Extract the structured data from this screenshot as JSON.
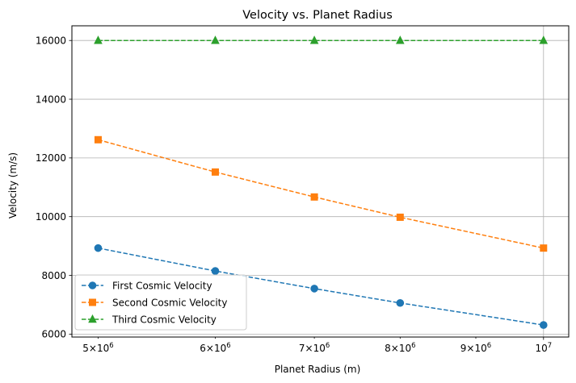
{
  "chart_data": {
    "type": "line",
    "title": "Velocity vs. Planet Radius",
    "xlabel": "Planet Radius (m)",
    "ylabel": "Velocity (m/s)",
    "xscale": "log",
    "xlim": [
      4800000,
      10400000
    ],
    "ylim": [
      5900,
      16500
    ],
    "x": [
      5000000,
      6000000,
      7000000,
      8000000,
      10000000
    ],
    "xticks": [
      {
        "value": 5000000,
        "mantissa": "5",
        "base": "10",
        "exp": "6"
      },
      {
        "value": 6000000,
        "mantissa": "6",
        "base": "10",
        "exp": "6"
      },
      {
        "value": 7000000,
        "mantissa": "7",
        "base": "10",
        "exp": "6"
      },
      {
        "value": 8000000,
        "mantissa": "8",
        "base": "10",
        "exp": "6"
      },
      {
        "value": 9000000,
        "mantissa": "9",
        "base": "10",
        "exp": "6"
      },
      {
        "value": 10000000,
        "mantissa": "",
        "base": "10",
        "exp": "7"
      }
    ],
    "yticks": [
      {
        "value": 6000,
        "label": "6000"
      },
      {
        "value": 8000,
        "label": "8000"
      },
      {
        "value": 10000,
        "label": "10000"
      },
      {
        "value": 12000,
        "label": "12000"
      },
      {
        "value": 14000,
        "label": "14000"
      },
      {
        "value": 16000,
        "label": "16000"
      }
    ],
    "grid": true,
    "legend_position": "lower-left",
    "series": [
      {
        "name": "First Cosmic Velocity",
        "values": [
          8930,
          8150,
          7550,
          7060,
          6310
        ],
        "color": "#1f77b4",
        "marker": "circle",
        "linestyle": "dashed"
      },
      {
        "name": "Second Cosmic Velocity",
        "values": [
          12620,
          11520,
          10670,
          9980,
          8930
        ],
        "color": "#ff7f0e",
        "marker": "square",
        "linestyle": "dashed"
      },
      {
        "name": "Third Cosmic Velocity",
        "values": [
          16000,
          16000,
          16000,
          16000,
          16000
        ],
        "color": "#2ca02c",
        "marker": "triangle",
        "linestyle": "dashed"
      }
    ]
  }
}
